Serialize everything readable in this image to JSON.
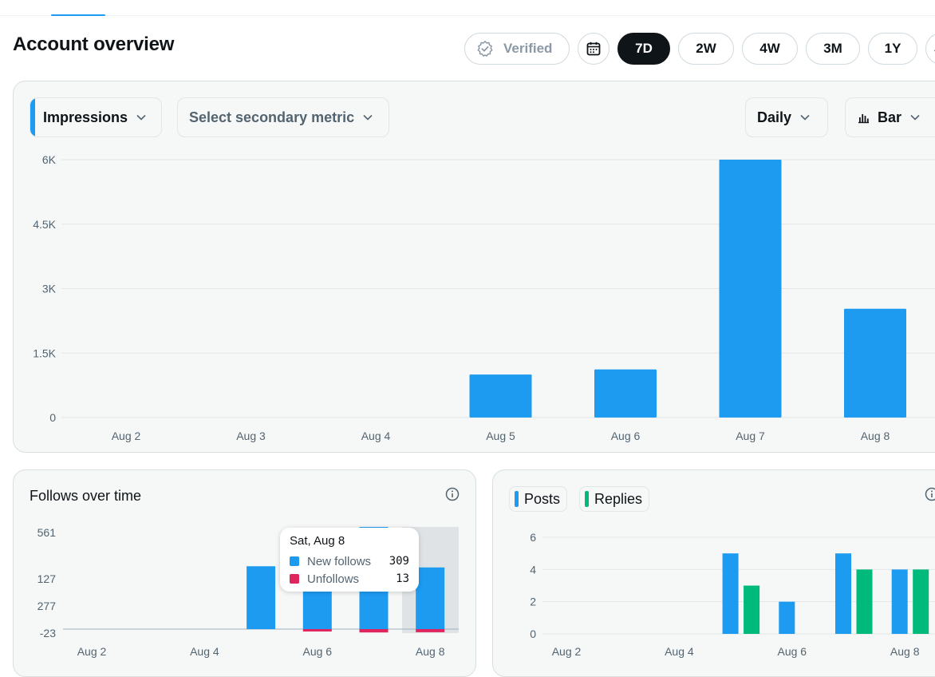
{
  "header": {
    "title": "Account overview"
  },
  "range": {
    "verified_label": "Verified",
    "options": [
      "7D",
      "2W",
      "4W",
      "3M",
      "1Y",
      "J"
    ],
    "selected": "7D"
  },
  "controls": {
    "primary_metric": "Impressions",
    "secondary_metric_placeholder": "Select secondary metric",
    "interval": "Daily",
    "chart_type": "Bar"
  },
  "colors": {
    "accent": "#1d9bf0",
    "unfollow": "#e0245e",
    "replies": "#00ba7c",
    "dark": "#0f1419"
  },
  "chart_data": [
    {
      "type": "bar",
      "title": "",
      "categories": [
        "Aug 2",
        "Aug 3",
        "Aug 4",
        "Aug 5",
        "Aug 6",
        "Aug 7",
        "Aug 8"
      ],
      "values": [
        0,
        0,
        0,
        1000,
        1120,
        6000,
        2530
      ],
      "yticks": [
        "0",
        "1.5K",
        "3K",
        "4.5K",
        "6K"
      ],
      "ylim": [
        0,
        6000
      ],
      "grid": true,
      "color": "#1d9bf0"
    },
    {
      "type": "bar",
      "title": "Follows over time",
      "categories": [
        "Aug 2",
        "Aug 3",
        "Aug 4",
        "Aug 5",
        "Aug 6",
        "Aug 7",
        "Aug 8"
      ],
      "xticks": [
        "Aug 2",
        "Aug 4",
        "Aug 6",
        "Aug 8"
      ],
      "yticks": [
        "-23",
        "127",
        "277",
        "561"
      ],
      "series": [
        {
          "name": "New follows",
          "values": [
            0,
            0,
            0,
            315,
            305,
            600,
            309
          ]
        },
        {
          "name": "Unfollows",
          "values": [
            0,
            0,
            0,
            0,
            10,
            14,
            13
          ]
        }
      ],
      "tooltip": {
        "title": "Sat, Aug 8",
        "rows": [
          {
            "name": "New follows",
            "value": "309"
          },
          {
            "name": "Unfollows",
            "value": "13"
          }
        ]
      }
    },
    {
      "type": "bar",
      "title": "",
      "categories": [
        "Aug 2",
        "Aug 3",
        "Aug 4",
        "Aug 5",
        "Aug 6",
        "Aug 7",
        "Aug 8"
      ],
      "xticks": [
        "Aug 2",
        "Aug 4",
        "Aug 6",
        "Aug 8"
      ],
      "yticks": [
        "0",
        "2",
        "4",
        "6"
      ],
      "ylim": [
        0,
        6
      ],
      "series": [
        {
          "name": "Posts",
          "values": [
            0,
            0,
            0,
            5,
            2,
            5,
            4
          ]
        },
        {
          "name": "Replies",
          "values": [
            0,
            0,
            0,
            3,
            0,
            4,
            4
          ]
        }
      ]
    }
  ]
}
